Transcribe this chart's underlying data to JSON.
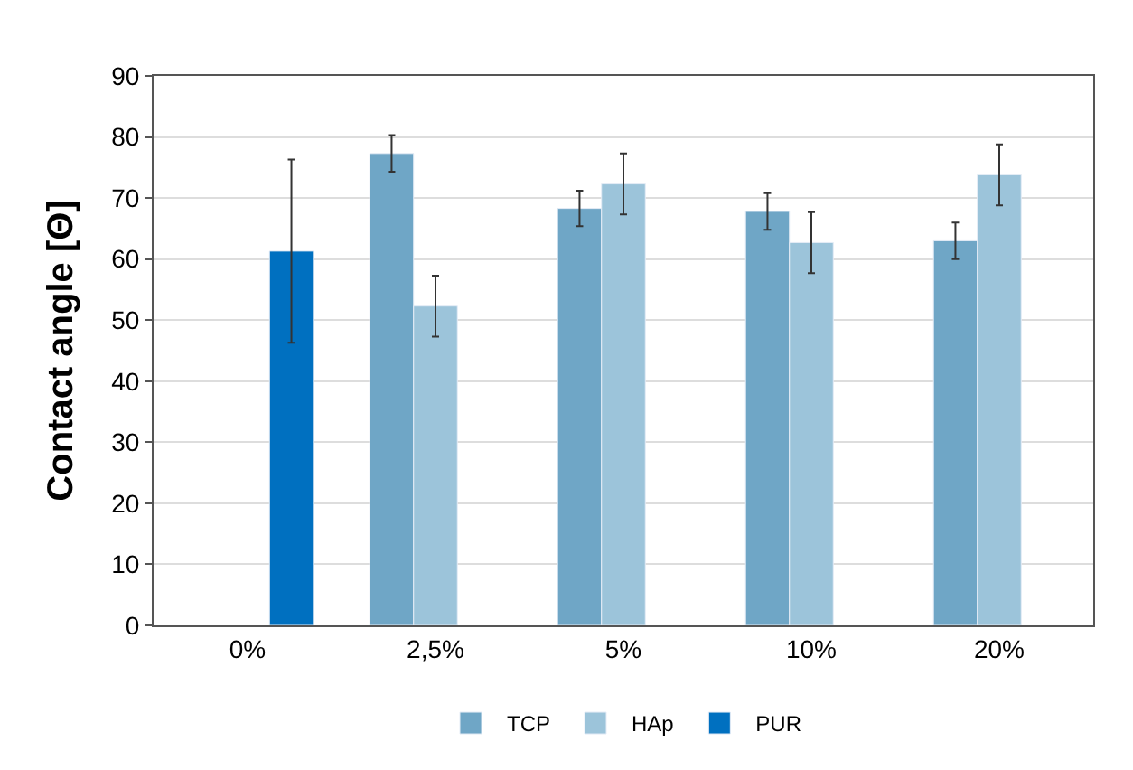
{
  "chart_data": {
    "type": "bar",
    "ylabel": "Contact angle [Θ]",
    "categories": [
      "0%",
      "2,5%",
      "5%",
      "10%",
      "20%"
    ],
    "series": [
      {
        "name": "TCP",
        "color": "#6fa6c6",
        "values": [
          null,
          77.3,
          68.3,
          67.8,
          63.0
        ],
        "errors": [
          null,
          3,
          2.9,
          3,
          3
        ]
      },
      {
        "name": "HAp",
        "color": "#9cc4da",
        "values": [
          null,
          52.3,
          72.3,
          62.7,
          73.8
        ],
        "errors": [
          null,
          5,
          5,
          5,
          5
        ]
      },
      {
        "name": "PUR",
        "color": "#0070c0",
        "values": [
          61.3,
          null,
          null,
          null,
          null
        ],
        "errors": [
          15,
          null,
          null,
          null,
          null
        ]
      }
    ],
    "ylim": [
      0,
      90
    ],
    "yticks": [
      0,
      10,
      20,
      30,
      40,
      50,
      60,
      70,
      80,
      90
    ],
    "grid": "y",
    "legend": "bottom"
  }
}
